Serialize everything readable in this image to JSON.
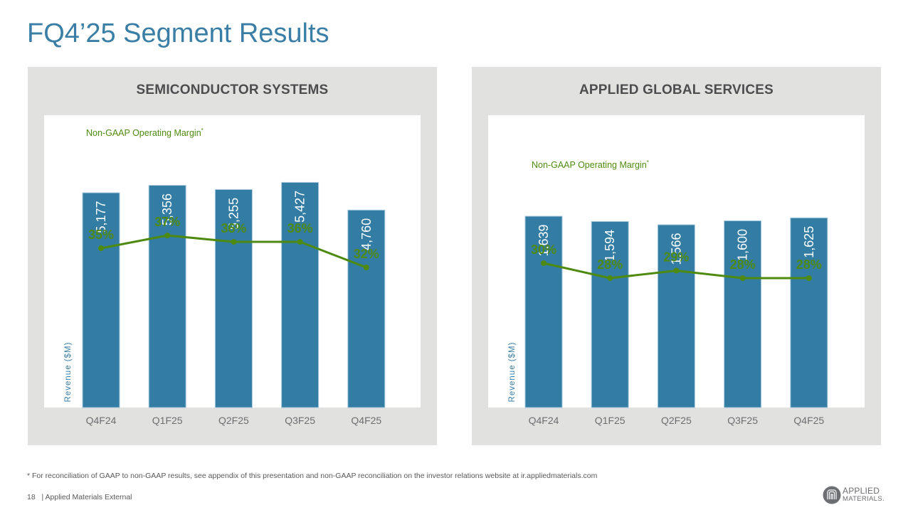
{
  "page": {
    "title": "FQ4’25 Segment Results",
    "footnote": "* For reconciliation of GAAP to non-GAAP results, see appendix of this presentation and non-GAAP reconciliation on the investor relations website at ir.appliedmaterials.com",
    "page_number": "18",
    "classification": "|  Applied Materials External",
    "logo": {
      "line1": "APPLIED",
      "line2": "MATERIALS."
    }
  },
  "colors": {
    "title": "#3a7ea6",
    "bar": "#337ca4",
    "bar_edge": "#a9c9dc",
    "line": "#4f8a10",
    "line_label": "#4f8a10",
    "panel_bg": "#e1e1e0",
    "axis_label": "#3a7ea6",
    "tick_label": "#6d6e71"
  },
  "chart_data": [
    {
      "type": "bar",
      "title": "SEMICONDUCTOR SYSTEMS",
      "categories": [
        "Q4F24",
        "Q1F25",
        "Q2F25",
        "Q3F25",
        "Q4F25"
      ],
      "ylabel": "Revenue ($M)",
      "xlabel": "",
      "ylim": [
        0,
        7000
      ],
      "grid": false,
      "series": [
        {
          "name": "Revenue ($M)",
          "type": "bar",
          "values": [
            5177,
            5356,
            5255,
            5427,
            4760
          ],
          "labels": [
            "5,177",
            "5,356",
            "5,255",
            "5,427",
            "4,760"
          ]
        },
        {
          "name": "Non-GAAP Operating Margin*",
          "type": "line",
          "values": [
            35,
            37,
            36,
            36,
            32
          ],
          "labels": [
            "35%",
            "37%",
            "36%",
            "36%",
            "32%"
          ]
        }
      ],
      "line_legend": "Non-GAAP Operating Margin",
      "line_legend_sup": "*"
    },
    {
      "type": "bar",
      "title": "APPLIED GLOBAL SERVICES",
      "categories": [
        "Q4F24",
        "Q1F25",
        "Q2F25",
        "Q3F25",
        "Q4F25"
      ],
      "ylabel": "Revenue ($M)",
      "xlabel": "",
      "ylim": [
        0,
        2500
      ],
      "grid": false,
      "series": [
        {
          "name": "Revenue ($M)",
          "type": "bar",
          "values": [
            1639,
            1594,
            1566,
            1600,
            1625
          ],
          "labels": [
            "1,639",
            "1,594",
            "1,566",
            "1,600",
            "1,625"
          ]
        },
        {
          "name": "Non-GAAP Operating Margin*",
          "type": "line",
          "values": [
            30,
            28,
            29,
            28,
            28
          ],
          "labels": [
            "30%",
            "28%",
            "29%",
            "28%",
            "28%"
          ]
        }
      ],
      "line_legend": "Non-GAAP Operating Margin",
      "line_legend_sup": "*"
    }
  ]
}
